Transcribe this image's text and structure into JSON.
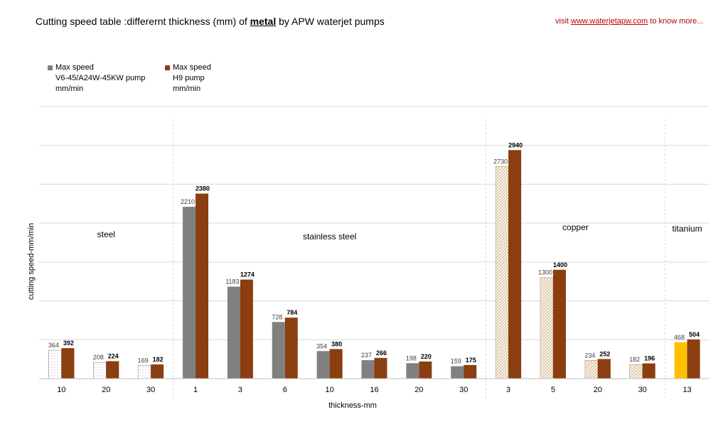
{
  "header": {
    "title_prefix": "Cutting speed table :differernt thickness (mm) of ",
    "title_bold": "metal",
    "title_suffix": " by APW waterjet pumps",
    "link_prefix": "visit ",
    "link_text": "www.waterjetapw.com",
    "link_suffix": " to know more..."
  },
  "legend": {
    "series1": [
      "Max speed",
      "V6-45/A24W-45KW  pump",
      "mm/min"
    ],
    "series2": [
      "Max speed",
      "H9  pump",
      "mm/min"
    ]
  },
  "colors": {
    "series1": "#808080",
    "series2": "#8b3e0f",
    "titanium_series1": "#ffc000",
    "grid": "#d9d9d9"
  },
  "chart_data": {
    "type": "bar",
    "title": "Cutting speed table :differernt thickness (mm) of metal by APW waterjet pumps",
    "xlabel": "thickness-mm",
    "ylabel": "cutting speed-mm/min",
    "ylim": [
      0,
      3500
    ],
    "grid": true,
    "groups": [
      {
        "name": "steel",
        "categories": [
          "10",
          "20",
          "30"
        ]
      },
      {
        "name": "stainless steel",
        "categories": [
          "1",
          "3",
          "6",
          "10",
          "16",
          "20",
          "30"
        ]
      },
      {
        "name": "copper",
        "categories": [
          "3",
          "5",
          "20",
          "30"
        ]
      },
      {
        "name": "titanium",
        "categories": [
          "13"
        ]
      }
    ],
    "categories": [
      "10",
      "20",
      "30",
      "1",
      "3",
      "6",
      "10",
      "16",
      "20",
      "30",
      "3",
      "5",
      "20",
      "30",
      "13"
    ],
    "series": [
      {
        "name": "Max speed V6-45/A24W-45KW pump mm/min",
        "values": [
          364,
          208,
          169,
          2210,
          1183,
          728,
          354,
          237,
          198,
          159,
          2730,
          1300,
          234,
          182,
          468
        ]
      },
      {
        "name": "Max speed H9 pump mm/min",
        "values": [
          392,
          224,
          182,
          2380,
          1274,
          784,
          380,
          266,
          220,
          175,
          2940,
          1400,
          252,
          196,
          504
        ]
      }
    ],
    "fill_styles": [
      "dots",
      "dots",
      "dots",
      "solid",
      "solid",
      "solid",
      "solid",
      "solid",
      "solid",
      "solid",
      "hatch",
      "hatch",
      "hatch",
      "hatch",
      "titanium"
    ]
  }
}
